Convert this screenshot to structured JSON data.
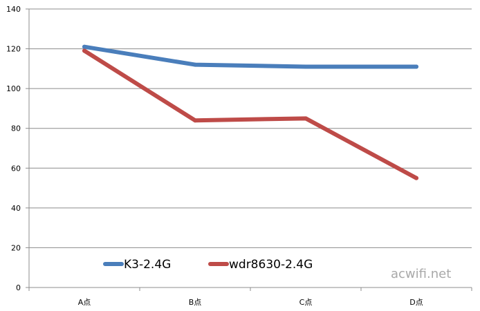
{
  "chart_data": {
    "type": "line",
    "categories": [
      "A点",
      "B点",
      "C点",
      "D点"
    ],
    "series": [
      {
        "name": "K3-2.4G",
        "values": [
          121,
          112,
          111,
          111
        ],
        "color": "#4a7ebb"
      },
      {
        "name": "wdr8630-2.4G",
        "values": [
          119,
          84,
          85,
          55
        ],
        "color": "#be4b48"
      }
    ],
    "ylim": [
      0,
      140
    ],
    "yticks": [
      0,
      20,
      40,
      60,
      80,
      100,
      120,
      140
    ],
    "grid": true,
    "legend_position": "bottom-left"
  },
  "watermark": "acwifi.net"
}
